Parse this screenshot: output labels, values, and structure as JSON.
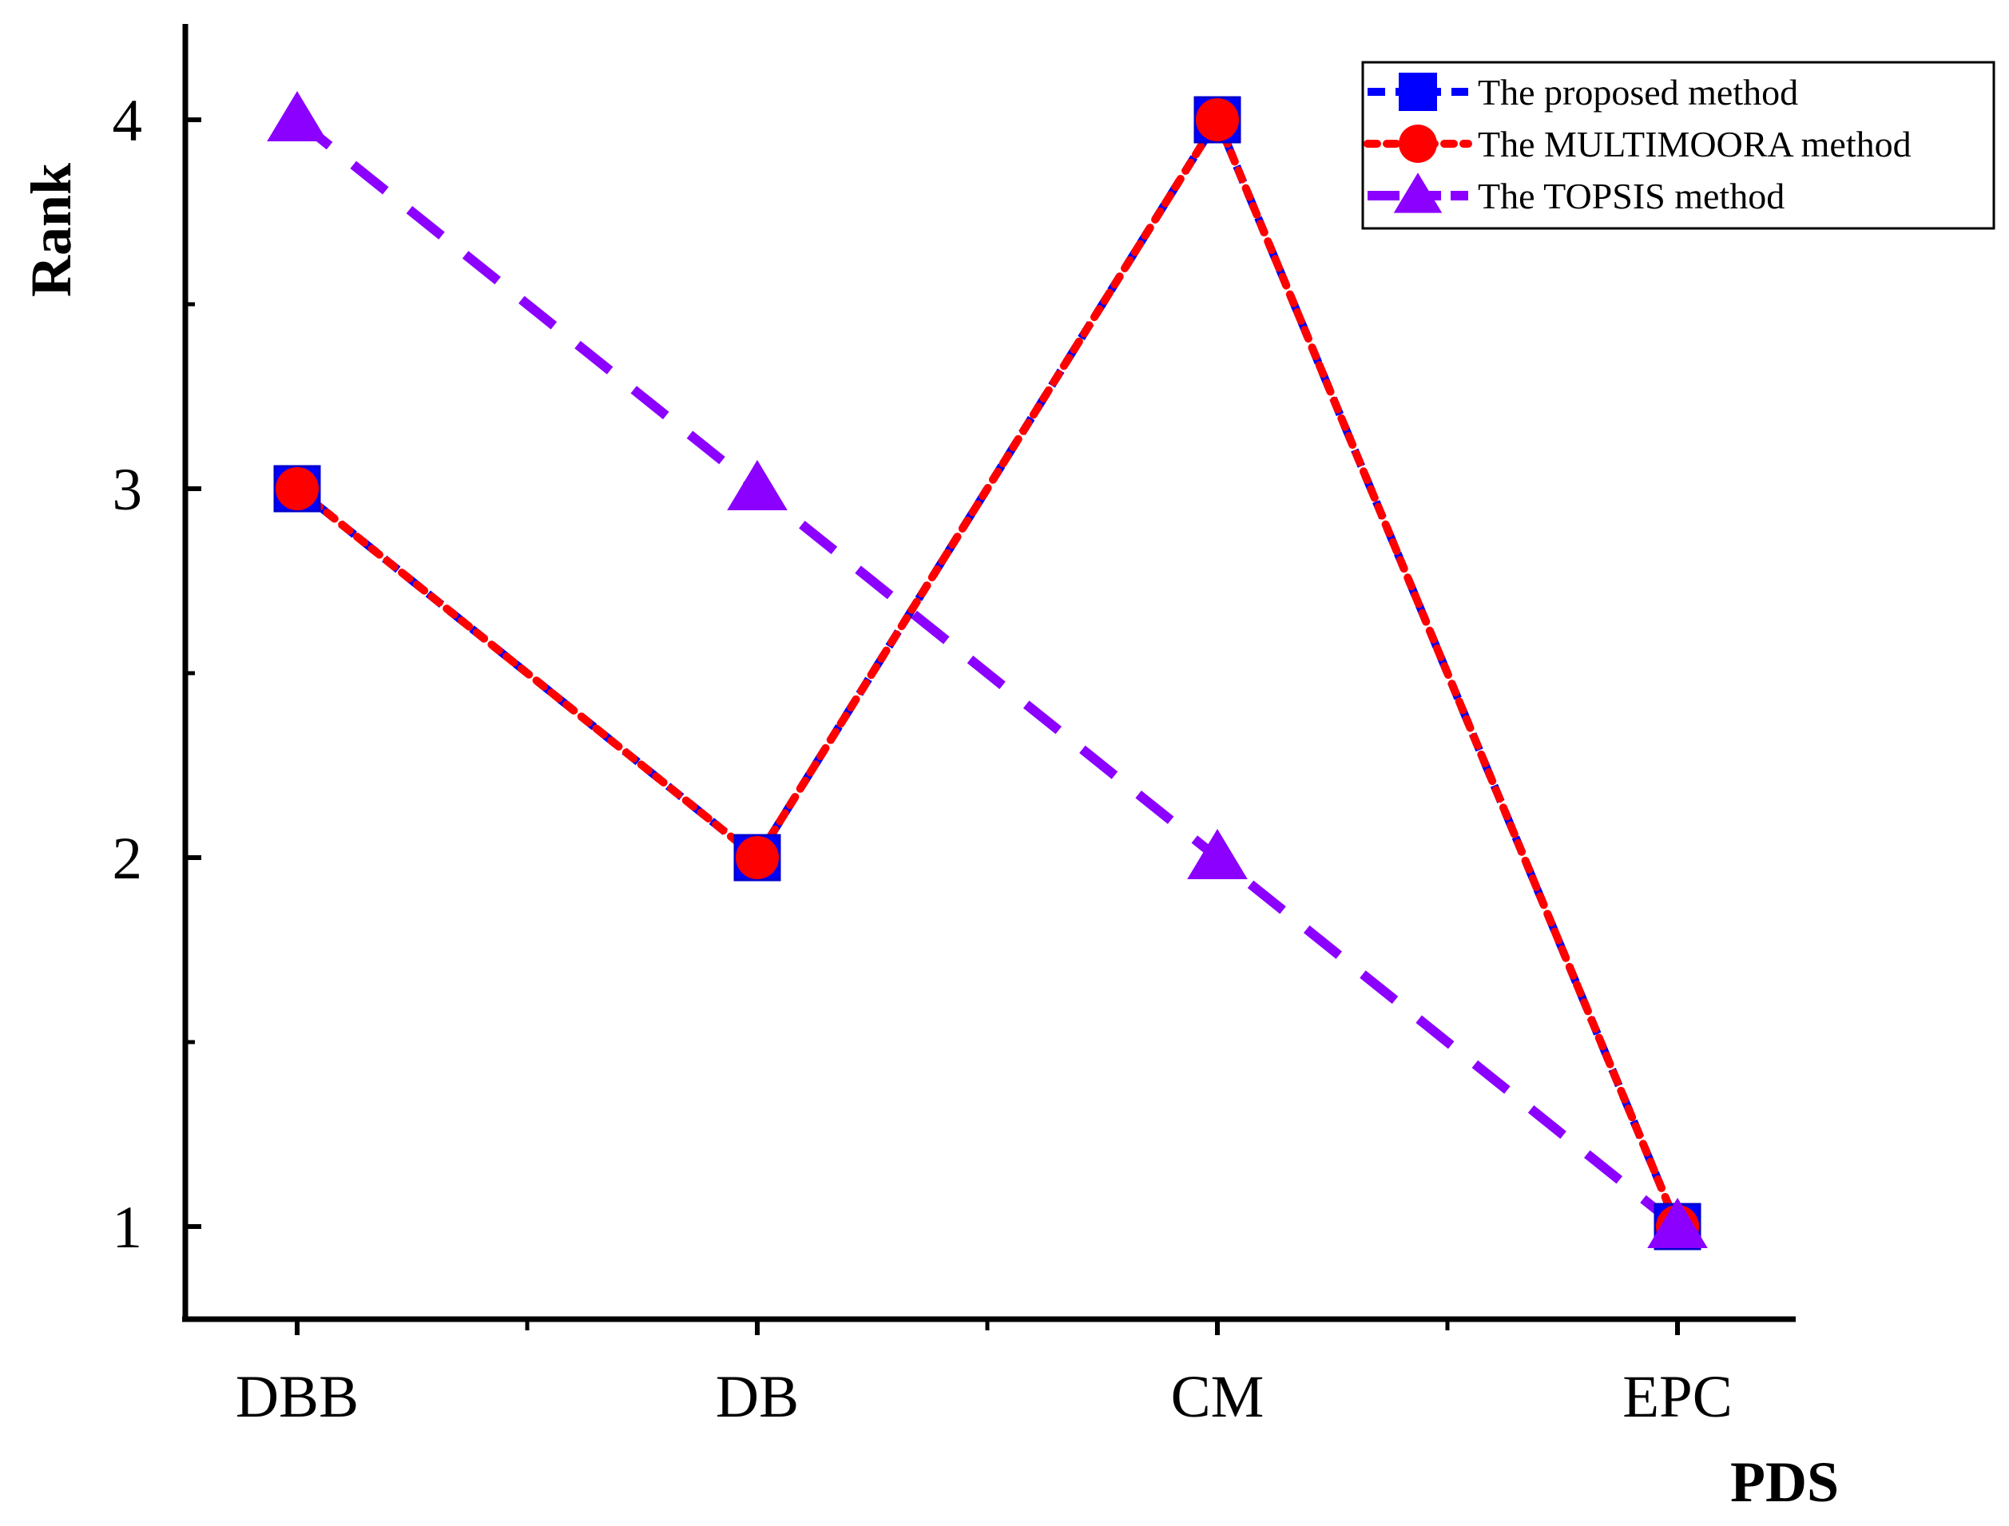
{
  "chart_data": {
    "type": "line",
    "title": "",
    "xlabel": "PDS",
    "ylabel": "Rank",
    "categories": [
      "DBB",
      "DB",
      "CM",
      "EPC"
    ],
    "ylim": [
      0.75,
      4.25
    ],
    "yticks": [
      1,
      2,
      3,
      4
    ],
    "grid": false,
    "legend_position": "top-right",
    "series": [
      {
        "name": "The proposed method",
        "values": [
          3,
          2,
          4,
          1
        ],
        "color": "#0000ff",
        "marker": "square",
        "line_style": "short-dash"
      },
      {
        "name": "The MULTIMOORA method",
        "values": [
          3,
          2,
          4,
          1
        ],
        "color": "#ff0000",
        "marker": "circle",
        "line_style": "dot"
      },
      {
        "name": "The TOPSIS method",
        "values": [
          4,
          3,
          2,
          1
        ],
        "color": "#8b00ff",
        "marker": "triangle",
        "line_style": "long-dash"
      }
    ]
  }
}
